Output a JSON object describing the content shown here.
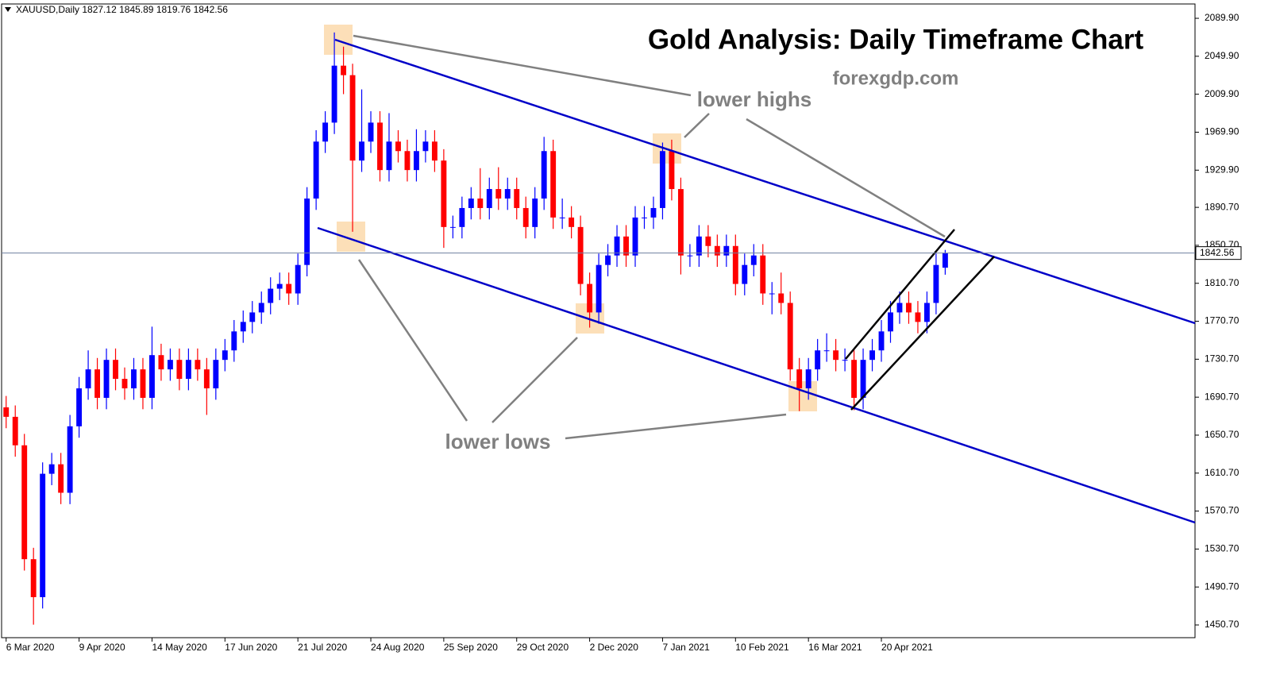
{
  "chart_data": {
    "type": "candlestick",
    "symbol": "XAUUSD,Daily",
    "title": "Gold Analysis: Daily Timeframe Chart",
    "subtitle": "forexgdp.com",
    "annotations": [
      "lower highs",
      "lower lows"
    ],
    "up_color": "#0000ff",
    "down_color": "#ff0000",
    "open": [
      1680,
      1670,
      1640,
      1520,
      1480,
      1610,
      1620,
      1590,
      1660,
      1700,
      1720,
      1690,
      1730,
      1710,
      1700,
      1720,
      1690,
      1735,
      1720,
      1730,
      1710,
      1730,
      1720,
      1700,
      1730,
      1740,
      1760,
      1770,
      1780,
      1790,
      1805,
      1810,
      1800,
      1830,
      1900,
      1960,
      1980,
      2040,
      2030,
      1940,
      1960,
      1980,
      1930,
      1960,
      1950,
      1930,
      1950,
      1960,
      1940,
      1870,
      1870,
      1890,
      1900,
      1890,
      1910,
      1900,
      1910,
      1890,
      1870,
      1900,
      1950,
      1880,
      1880,
      1870,
      1810,
      1780,
      1830,
      1840,
      1860,
      1840,
      1880,
      1880,
      1890,
      1950,
      1910,
      1840,
      1840,
      1860,
      1850,
      1840,
      1850,
      1810,
      1830,
      1840,
      1800,
      1800,
      1790,
      1720,
      1700,
      1720,
      1740,
      1740,
      1730,
      1730,
      1690,
      1730,
      1740,
      1760,
      1780,
      1790,
      1780,
      1770,
      1790,
      1827.12
    ],
    "high": [
      1692,
      1682,
      1652,
      1532,
      1622,
      1632,
      1632,
      1672,
      1712,
      1740,
      1732,
      1742,
      1742,
      1722,
      1732,
      1732,
      1765,
      1747,
      1742,
      1742,
      1742,
      1742,
      1732,
      1742,
      1752,
      1772,
      1782,
      1792,
      1802,
      1817,
      1822,
      1822,
      1842,
      1912,
      1972,
      1992,
      2075,
      2060,
      2042,
      2015,
      1992,
      1992,
      1990,
      1972,
      1962,
      1973,
      1972,
      1972,
      1952,
      1882,
      1902,
      1912,
      1932,
      1922,
      1933,
      1922,
      1922,
      1902,
      1912,
      1965,
      1962,
      1900,
      1892,
      1882,
      1822,
      1842,
      1852,
      1872,
      1872,
      1892,
      1892,
      1902,
      1959,
      1962,
      1922,
      1852,
      1872,
      1872,
      1862,
      1862,
      1862,
      1842,
      1852,
      1852,
      1812,
      1822,
      1802,
      1732,
      1732,
      1752,
      1758,
      1752,
      1742,
      1742,
      1742,
      1752,
      1772,
      1792,
      1802,
      1802,
      1792,
      1802,
      1842,
      1845.89
    ],
    "low": [
      1658,
      1628,
      1508,
      1451,
      1468,
      1598,
      1578,
      1578,
      1648,
      1688,
      1678,
      1678,
      1698,
      1688,
      1688,
      1678,
      1678,
      1708,
      1708,
      1698,
      1698,
      1708,
      1672,
      1688,
      1718,
      1728,
      1748,
      1758,
      1768,
      1778,
      1793,
      1788,
      1788,
      1818,
      1888,
      1948,
      1968,
      2010,
      1865,
      1928,
      1948,
      1918,
      1918,
      1938,
      1918,
      1918,
      1938,
      1928,
      1848,
      1858,
      1858,
      1878,
      1878,
      1878,
      1888,
      1888,
      1878,
      1858,
      1858,
      1888,
      1868,
      1868,
      1858,
      1798,
      1764,
      1768,
      1818,
      1828,
      1828,
      1828,
      1868,
      1868,
      1878,
      1898,
      1820,
      1828,
      1828,
      1838,
      1828,
      1828,
      1798,
      1798,
      1818,
      1788,
      1778,
      1778,
      1708,
      1676,
      1688,
      1708,
      1728,
      1718,
      1718,
      1677,
      1678,
      1718,
      1728,
      1748,
      1768,
      1768,
      1758,
      1758,
      1778,
      1819.76
    ],
    "close": [
      1670,
      1640,
      1520,
      1480,
      1610,
      1620,
      1590,
      1660,
      1700,
      1720,
      1690,
      1730,
      1710,
      1700,
      1720,
      1690,
      1735,
      1720,
      1730,
      1710,
      1730,
      1720,
      1700,
      1730,
      1740,
      1760,
      1770,
      1780,
      1790,
      1805,
      1810,
      1800,
      1830,
      1900,
      1960,
      1980,
      2040,
      2030,
      1940,
      1960,
      1980,
      1930,
      1960,
      1950,
      1930,
      1950,
      1960,
      1940,
      1870,
      1870,
      1890,
      1900,
      1890,
      1910,
      1900,
      1910,
      1890,
      1870,
      1900,
      1950,
      1880,
      1880,
      1870,
      1810,
      1780,
      1830,
      1840,
      1860,
      1840,
      1880,
      1880,
      1890,
      1950,
      1910,
      1840,
      1840,
      1860,
      1850,
      1840,
      1850,
      1810,
      1830,
      1840,
      1800,
      1800,
      1790,
      1720,
      1700,
      1720,
      1740,
      1740,
      1730,
      1730,
      1690,
      1730,
      1740,
      1760,
      1780,
      1790,
      1780,
      1770,
      1790,
      1830,
      1842.56
    ],
    "xlim": [
      -0.5,
      130.4
    ],
    "xticks": [
      {
        "value": 0,
        "label": "6 Mar 2020"
      },
      {
        "value": 8,
        "label": "9 Apr 2020"
      },
      {
        "value": 16,
        "label": "14 May 2020"
      },
      {
        "value": 24,
        "label": "17 Jun 2020"
      },
      {
        "value": 32,
        "label": "21 Jul 2020"
      },
      {
        "value": 40,
        "label": "24 Aug 2020"
      },
      {
        "value": 48,
        "label": "25 Sep 2020"
      },
      {
        "value": 56,
        "label": "29 Oct 2020"
      },
      {
        "value": 64,
        "label": "2 Dec 2020"
      },
      {
        "value": 72,
        "label": "7 Jan 2021"
      },
      {
        "value": 80,
        "label": "10 Feb 2021"
      },
      {
        "value": 88,
        "label": "16 Mar 2021"
      },
      {
        "value": 96,
        "label": "20 Apr 2021"
      }
    ],
    "ylim": [
      1437.3,
      2105
    ],
    "yticks": [
      {
        "value": 2089.9,
        "label": "2089.90"
      },
      {
        "value": 2049.9,
        "label": "2049.90"
      },
      {
        "value": 2009.9,
        "label": "2009.90"
      },
      {
        "value": 1969.9,
        "label": "1969.90"
      },
      {
        "value": 1929.9,
        "label": "1929.90"
      },
      {
        "value": 1890.7,
        "label": "1890.70"
      },
      {
        "value": 1850.7,
        "label": "1850.70"
      },
      {
        "value": 1810.7,
        "label": "1810.70"
      },
      {
        "value": 1770.7,
        "label": "1770.70"
      },
      {
        "value": 1730.7,
        "label": "1730.70"
      },
      {
        "value": 1690.7,
        "label": "1690.70"
      },
      {
        "value": 1650.7,
        "label": "1650.70"
      },
      {
        "value": 1610.7,
        "label": "1610.70"
      },
      {
        "value": 1570.7,
        "label": "1570.70"
      },
      {
        "value": 1530.7,
        "label": "1530.70"
      },
      {
        "value": 1490.7,
        "label": "1490.70"
      },
      {
        "value": 1450.7,
        "label": "1450.70"
      }
    ]
  }
}
